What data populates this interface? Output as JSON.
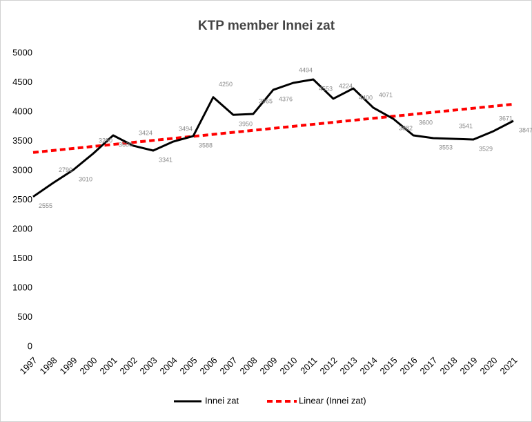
{
  "chart_data": {
    "type": "line",
    "title": "KTP member Innei zat",
    "categories": [
      "1997",
      "1998",
      "1999",
      "2000",
      "2001",
      "2002",
      "2003",
      "2004",
      "2005",
      "2006",
      "2007",
      "2008",
      "2009",
      "2010",
      "2011",
      "2012",
      "2013",
      "2014",
      "2015",
      "2016",
      "2017",
      "2018",
      "2019",
      "2020",
      "2021"
    ],
    "series": [
      {
        "name": "Innei zat",
        "color": "#000000",
        "values": [
          2555,
          2790,
          3010,
          3290,
          3600,
          3424,
          3341,
          3494,
          3588,
          4250,
          3950,
          3965,
          4376,
          4494,
          4553,
          4224,
          4400,
          4071,
          3882,
          3600,
          3553,
          3541,
          3529,
          3671,
          3847
        ]
      }
    ],
    "trendline": {
      "name": "Linear (Innei zat)",
      "color": "#ff0000",
      "kind": "linear"
    },
    "ylim": [
      0,
      5000
    ],
    "yticks": [
      0,
      500,
      1000,
      1500,
      2000,
      2500,
      3000,
      3500,
      4000,
      4500,
      5000
    ],
    "grid": false,
    "legend": "bottom"
  }
}
